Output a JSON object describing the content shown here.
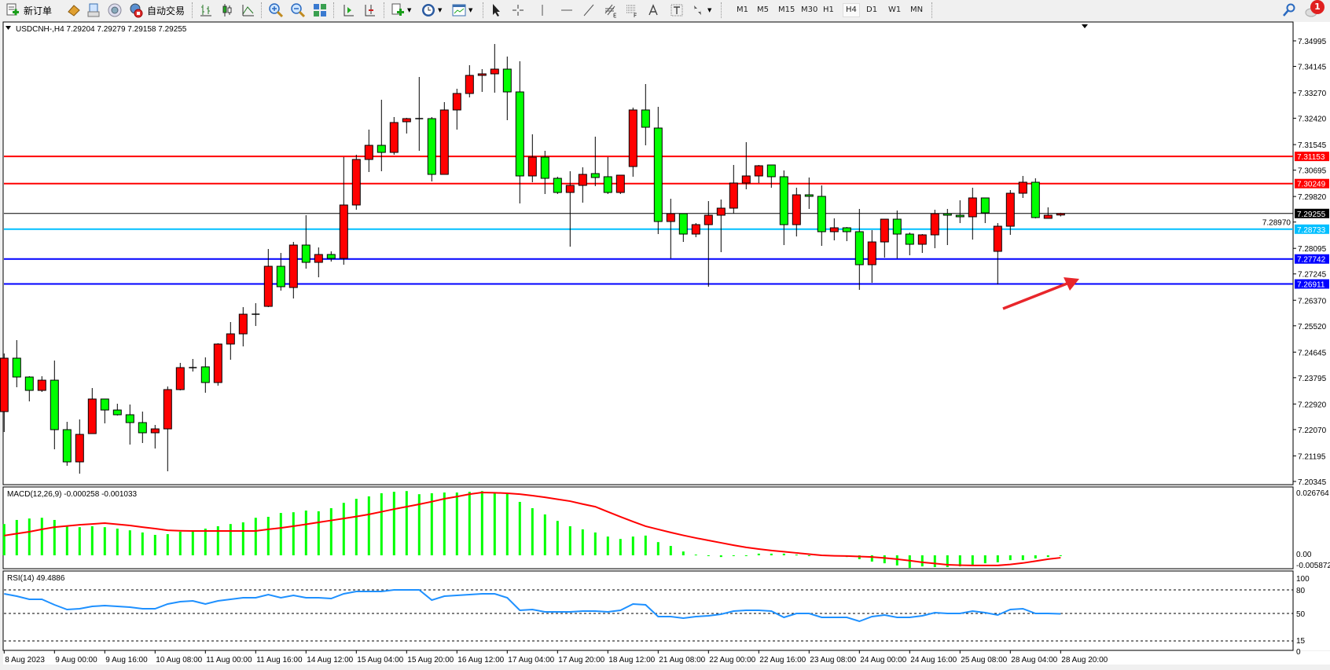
{
  "toolbar": {
    "new_order_label": "新订单",
    "auto_trading_label": "自动交易",
    "timeframes": [
      "M1",
      "M5",
      "M15",
      "M30",
      "H1",
      "H4",
      "D1",
      "W1",
      "MN"
    ],
    "selected_timeframe": "H4",
    "notification_count": "1",
    "icons": [
      "new-order-icon",
      "market-watch-icon",
      "data-window-icon",
      "navigator-icon",
      "signals-icon",
      "auto-trading-icon",
      "bar-chart-icon",
      "candlestick-icon",
      "line-chart-icon",
      "zoom-in-icon",
      "zoom-out-icon",
      "tile-windows-icon",
      "chart-shift-icon",
      "auto-scroll-icon",
      "indicators-icon",
      "periods-icon",
      "templates-icon",
      "cursor-icon",
      "crosshair-icon",
      "vertical-line-icon",
      "horizontal-line-icon",
      "trendline-icon",
      "fibonacci-icon",
      "channel-icon",
      "text-icon",
      "text-label-icon",
      "arrows-icon",
      "search-icon",
      "notification-icon"
    ]
  },
  "chart": {
    "header": "USDCNH-,H4  7.29204 7.29279 7.29158 7.29255",
    "macd_label": "MACD(12,26,9) -0.000258 -0.001033",
    "rsi_label": "RSI(14) 49.4886"
  },
  "chart_data": {
    "type": "candlestick",
    "symbol": "USDCNH-",
    "timeframe": "H4",
    "colors": {
      "up": "#ff0000",
      "down": "#00ff00",
      "macd_histogram": "#00ff00",
      "macd_signal": "#ff0000",
      "rsi": "#1e90ff"
    },
    "candles": [
      [
        7.22668,
        7.246,
        7.21989,
        7.24444
      ],
      [
        7.24444,
        7.25044,
        7.23477,
        7.23817
      ],
      [
        7.23817,
        7.23843,
        7.23007,
        7.23373
      ],
      [
        7.23373,
        7.23843,
        7.23321,
        7.23712
      ],
      [
        7.23712,
        7.24365,
        7.21414,
        7.22067
      ],
      [
        7.22067,
        7.22328,
        7.20866,
        7.20996
      ],
      [
        7.20996,
        7.22407,
        7.20604,
        7.2191
      ],
      [
        7.21936,
        7.23451,
        7.21936,
        7.23086
      ],
      [
        7.23086,
        7.23086,
        7.22276,
        7.2272
      ],
      [
        7.2272,
        7.22929,
        7.22537,
        7.22563
      ],
      [
        7.22563,
        7.22903,
        7.21571,
        7.22302
      ],
      [
        7.22302,
        7.22668,
        7.21623,
        7.21963
      ],
      [
        7.21963,
        7.22224,
        7.2144,
        7.22093
      ],
      [
        7.22093,
        7.23503,
        7.20683,
        7.23399
      ],
      [
        7.23399,
        7.24287,
        7.23373,
        7.2413
      ],
      [
        7.2413,
        7.24418,
        7.24,
        7.2413
      ],
      [
        7.24156,
        7.2447,
        7.23295,
        7.23634
      ],
      [
        7.23634,
        7.2494,
        7.2353,
        7.24914
      ],
      [
        7.24914,
        7.25645,
        7.24391,
        7.25253
      ],
      [
        7.25253,
        7.26141,
        7.24835,
        7.25906
      ],
      [
        7.25906,
        7.26272,
        7.25514,
        7.25906
      ],
      [
        7.26167,
        7.28074,
        7.26141,
        7.27499
      ],
      [
        7.27499,
        7.27943,
        7.2669,
        7.2682
      ],
      [
        7.26794,
        7.28309,
        7.26429,
        7.28205
      ],
      [
        7.28205,
        7.29197,
        7.27421,
        7.2763
      ],
      [
        7.2763,
        7.28126,
        7.27134,
        7.27891
      ],
      [
        7.27891,
        7.27996,
        7.27656,
        7.27761
      ],
      [
        7.27761,
        7.3113,
        7.27552,
        7.29537
      ],
      [
        7.29537,
        7.31208,
        7.2938,
        7.31051
      ],
      [
        7.31051,
        7.32044,
        7.30633,
        7.31521
      ],
      [
        7.31521,
        7.33036,
        7.3066,
        7.31286
      ],
      [
        7.31286,
        7.32462,
        7.31208,
        7.32279
      ],
      [
        7.32305,
        7.32435,
        7.31913,
        7.32409
      ],
      [
        7.32409,
        7.33794,
        7.31339,
        7.32409
      ],
      [
        7.32409,
        7.32462,
        7.3032,
        7.30555
      ],
      [
        7.30555,
        7.32958,
        7.30555,
        7.32697
      ],
      [
        7.32697,
        7.33402,
        7.32044,
        7.33245
      ],
      [
        7.33245,
        7.34185,
        7.33115,
        7.33846
      ],
      [
        7.33846,
        7.34055,
        7.33297,
        7.33898
      ],
      [
        7.33898,
        7.3489,
        7.33271,
        7.34055
      ],
      [
        7.34055,
        7.34473,
        7.32357,
        7.33297
      ],
      [
        7.33297,
        7.34316,
        7.29589,
        7.30503
      ],
      [
        7.30503,
        7.31887,
        7.30294,
        7.3113
      ],
      [
        7.3113,
        7.31339,
        7.29902,
        7.30424
      ],
      [
        7.30424,
        7.30477,
        7.29902,
        7.29954
      ],
      [
        7.29954,
        7.3066,
        7.28152,
        7.30189
      ],
      [
        7.30189,
        7.3079,
        7.29615,
        7.30555
      ],
      [
        7.30581,
        7.31809,
        7.30163,
        7.30451
      ],
      [
        7.30477,
        7.3113,
        7.29902,
        7.29954
      ],
      [
        7.29954,
        7.30529,
        7.29902,
        7.30529
      ],
      [
        7.30816,
        7.32775,
        7.30477,
        7.32697
      ],
      [
        7.32697,
        7.33559,
        7.31521,
        7.32122
      ],
      [
        7.32096,
        7.32801,
        7.2857,
        7.28988
      ],
      [
        7.28988,
        7.29745,
        7.27761,
        7.29249
      ],
      [
        7.29249,
        7.29249,
        7.28309,
        7.2857
      ],
      [
        7.2857,
        7.28936,
        7.28466,
        7.28884
      ],
      [
        7.28884,
        7.29667,
        7.2682,
        7.29197
      ],
      [
        7.29197,
        7.29719,
        7.27969,
        7.29432
      ],
      [
        7.29432,
        7.30868,
        7.29249,
        7.30268
      ],
      [
        7.30268,
        7.31626,
        7.30059,
        7.30503
      ],
      [
        7.30503,
        7.30868,
        7.30268,
        7.30842
      ],
      [
        7.30868,
        7.30868,
        7.30111,
        7.30477
      ],
      [
        7.30477,
        7.30686,
        7.28205,
        7.28884
      ],
      [
        7.28884,
        7.30111,
        7.28492,
        7.29876
      ],
      [
        7.29876,
        7.30451,
        7.29406,
        7.29824
      ],
      [
        7.29824,
        7.30189,
        7.28178,
        7.28649
      ],
      [
        7.28649,
        7.29093,
        7.28361,
        7.28779
      ],
      [
        7.28779,
        7.28805,
        7.28335,
        7.28649
      ],
      [
        7.28649,
        7.29406,
        7.26716,
        7.27552
      ],
      [
        7.27552,
        7.28701,
        7.26951,
        7.28309
      ],
      [
        7.28309,
        7.29066,
        7.27787,
        7.29066
      ],
      [
        7.29066,
        7.29354,
        7.27761,
        7.2857
      ],
      [
        7.2857,
        7.28622,
        7.27865,
        7.28231
      ],
      [
        7.28231,
        7.2857,
        7.27943,
        7.28544
      ],
      [
        7.28544,
        7.2938,
        7.281,
        7.29249
      ],
      [
        7.29249,
        7.29406,
        7.28205,
        7.29197
      ],
      [
        7.29197,
        7.29693,
        7.28936,
        7.29145
      ],
      [
        7.29145,
        7.30111,
        7.28387,
        7.29772
      ],
      [
        7.29772,
        7.29772,
        7.28936,
        7.29275
      ],
      [
        7.27996,
        7.28936,
        7.26899,
        7.28831
      ],
      [
        7.28831,
        7.30033,
        7.28544,
        7.29928
      ],
      [
        7.29928,
        7.30503,
        7.29772,
        7.30294
      ],
      [
        7.30294,
        7.30424,
        7.29093,
        7.29119
      ],
      [
        7.29093,
        7.29458,
        7.29093,
        7.29197
      ],
      [
        7.29204,
        7.29279,
        7.29158,
        7.29255
      ]
    ],
    "price_ticks": [
      "7.34995",
      "7.34145",
      "7.33270",
      "7.32420",
      "7.31545",
      "7.30695",
      "7.29820",
      "7.28970",
      "7.28095",
      "7.27245",
      "7.26370",
      "7.25520",
      "7.24645",
      "7.23795",
      "7.22920",
      "7.22070",
      "7.21195",
      "7.20345"
    ],
    "price_range": [
      7.20345,
      7.34995
    ],
    "levels": [
      {
        "value": "7.31153",
        "color": "#ff0000"
      },
      {
        "value": "7.30249",
        "color": "#ff0000"
      },
      {
        "value": "7.29255",
        "color": "#000000",
        "current": true
      },
      {
        "value": "7.28733",
        "color": "#00bfff"
      },
      {
        "value": "7.27742",
        "color": "#0000ff"
      },
      {
        "value": "7.26911",
        "color": "#0000ff"
      }
    ],
    "time_labels": [
      "8 Aug 2023",
      "9 Aug 00:00",
      "9 Aug 16:00",
      "10 Aug 08:00",
      "11 Aug 00:00",
      "11 Aug 16:00",
      "14 Aug 12:00",
      "15 Aug 04:00",
      "15 Aug 20:00",
      "16 Aug 12:00",
      "17 Aug 04:00",
      "17 Aug 20:00",
      "18 Aug 12:00",
      "21 Aug 08:00",
      "22 Aug 00:00",
      "22 Aug 16:00",
      "23 Aug 08:00",
      "24 Aug 00:00",
      "24 Aug 16:00",
      "25 Aug 08:00",
      "28 Aug 04:00",
      "28 Aug 20:00"
    ],
    "macd": {
      "axis_labels": [
        "0.026764",
        "0.00",
        "-0.005872"
      ],
      "range": [
        -0.005872,
        0.026764
      ],
      "histogram": [
        0.013,
        0.0147,
        0.0153,
        0.0156,
        0.0147,
        0.0121,
        0.0117,
        0.0121,
        0.0117,
        0.0111,
        0.0104,
        0.0095,
        0.0085,
        0.0088,
        0.0098,
        0.0101,
        0.0111,
        0.0121,
        0.013,
        0.0137,
        0.0156,
        0.016,
        0.0176,
        0.0179,
        0.0186,
        0.0183,
        0.0196,
        0.0218,
        0.0235,
        0.0245,
        0.0258,
        0.0264,
        0.0267,
        0.0254,
        0.0258,
        0.0261,
        0.0261,
        0.0264,
        0.0267,
        0.0261,
        0.0258,
        0.0222,
        0.0196,
        0.017,
        0.0143,
        0.0121,
        0.0108,
        0.0095,
        0.0078,
        0.0068,
        0.0078,
        0.0082,
        0.0055,
        0.0039,
        0.0016,
        0.0003,
        -0.0003,
        -0.0007,
        -0.0003,
        -0.0003,
        0.0007,
        0.0007,
        0.0007,
        0.0003,
        0.0,
        -0.0003,
        -0.0003,
        -0.0007,
        -0.0016,
        -0.0026,
        -0.0033,
        -0.0042,
        -0.0052,
        -0.0046,
        -0.0049,
        -0.0049,
        -0.0046,
        -0.0042,
        -0.0033,
        -0.0029,
        -0.002,
        -0.002,
        -0.0013,
        -0.0007,
        -0.0003
      ],
      "signal": [
        0.0082,
        0.009,
        0.0098,
        0.0108,
        0.0117,
        0.0122,
        0.0127,
        0.013,
        0.0134,
        0.0129,
        0.0124,
        0.0117,
        0.0111,
        0.0104,
        0.0102,
        0.0101,
        0.0101,
        0.0101,
        0.0101,
        0.0101,
        0.0101,
        0.0108,
        0.0114,
        0.0121,
        0.0129,
        0.0137,
        0.0145,
        0.0153,
        0.0161,
        0.017,
        0.0181,
        0.0192,
        0.0202,
        0.0212,
        0.0223,
        0.0235,
        0.0244,
        0.0254,
        0.0261,
        0.026,
        0.0258,
        0.0254,
        0.0248,
        0.0241,
        0.0233,
        0.0225,
        0.0213,
        0.0202,
        0.0181,
        0.016,
        0.014,
        0.0121,
        0.0108,
        0.0095,
        0.0083,
        0.0072,
        0.0062,
        0.0052,
        0.0042,
        0.0033,
        0.0026,
        0.002,
        0.0015,
        0.001,
        0.0005,
        0.0,
        -0.0002,
        -0.0003,
        -0.0005,
        -0.0007,
        -0.0011,
        -0.0016,
        -0.0022,
        -0.0029,
        -0.0034,
        -0.0039,
        -0.0041,
        -0.0042,
        -0.0042,
        -0.0042,
        -0.0038,
        -0.0032,
        -0.0024,
        -0.0016,
        -0.001
      ]
    },
    "rsi": {
      "axis_labels": [
        "100",
        "80",
        "50",
        "15",
        "0"
      ],
      "levels": [
        80,
        50,
        15
      ],
      "values": [
        75,
        72,
        68,
        68,
        61,
        55,
        56,
        59,
        60,
        59,
        58,
        56,
        56,
        62,
        65,
        66,
        62,
        66,
        68,
        70,
        70,
        74,
        70,
        73,
        70,
        70,
        69,
        75,
        78,
        78,
        78,
        80,
        80,
        80,
        67,
        72,
        73,
        74,
        75,
        75,
        70,
        54,
        55,
        52,
        52,
        52,
        53,
        53,
        52,
        54,
        62,
        61,
        46,
        46,
        44,
        46,
        47,
        49,
        53,
        54,
        54,
        53,
        45,
        50,
        50,
        45,
        45,
        45,
        40,
        46,
        48,
        45,
        45,
        47,
        51,
        50,
        50,
        53,
        51,
        48,
        55,
        56,
        50,
        50,
        49.4886
      ]
    },
    "annotation": {
      "type": "arrow",
      "color": "#e8262b"
    }
  }
}
